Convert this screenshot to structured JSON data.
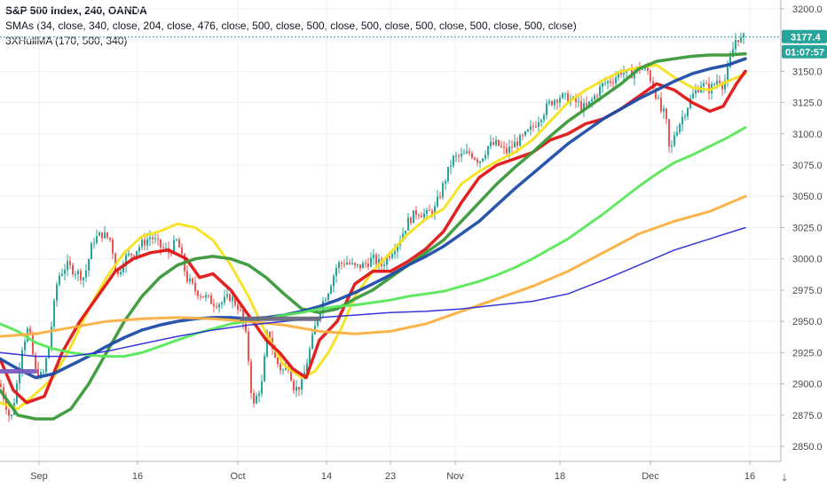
{
  "legend": {
    "title": "S&P 500 Index, 240, OANDA",
    "sma": "SMAs (34, close, 340, close, 204, close, 476, close, 500, close, 500, close, 500, close, 500, close, 500, close, 500, close)",
    "hull": "3XHullMA (170, 500, 340)"
  },
  "badges": {
    "price": "3177.4",
    "timer": "01:07:57"
  },
  "colors": {
    "price_badge": "#26a69a",
    "timer_badge": "#26a69a",
    "up_candle": "#26a69a",
    "down_candle": "#ef5350",
    "gridline": "#eef0f3"
  },
  "chart_data": {
    "type": "line",
    "title": "S&P 500 Index, 240, OANDA",
    "x_tick_labels": [
      "Sep",
      "16",
      "Oct",
      "14",
      "23",
      "Nov",
      "18",
      "Dec",
      "16"
    ],
    "y_tick_labels": [
      2850,
      2875,
      2900,
      2925,
      2950,
      2975,
      3000,
      3025,
      3050,
      3075,
      3100,
      3125,
      3150,
      3175,
      3200
    ],
    "ylim": [
      2838,
      3207
    ],
    "grid": true,
    "last_price": 3177.4,
    "price_series": {
      "name": "S&P 500 Index",
      "x": [
        0,
        8,
        12,
        18,
        25,
        32,
        40,
        48,
        55,
        65,
        75,
        85,
        95,
        105,
        115,
        125,
        132,
        140,
        150,
        160,
        170,
        180,
        190,
        200,
        210,
        220,
        230,
        240,
        250,
        260,
        270,
        278,
        285,
        290,
        295,
        302,
        310,
        318,
        325,
        332,
        340,
        350,
        360,
        370,
        380,
        390,
        400,
        410,
        420,
        430,
        440,
        450,
        460,
        470,
        480,
        490,
        500,
        510,
        520,
        530,
        540,
        550,
        560,
        570,
        580,
        590,
        600,
        610,
        620,
        630,
        640,
        650,
        660,
        670,
        680,
        690,
        700,
        710,
        720,
        730,
        740,
        745,
        750,
        755,
        760,
        770,
        780,
        790,
        800,
        810,
        815,
        820,
        825,
        830,
        835,
        840
      ],
      "y": [
        2900,
        2880,
        2870,
        2895,
        2930,
        2945,
        2910,
        2905,
        2930,
        2985,
        2995,
        2990,
        2985,
        3015,
        3020,
        3015,
        2985,
        3000,
        3005,
        3012,
        3018,
        3010,
        3005,
        3015,
        2985,
        2975,
        2970,
        2965,
        2965,
        2970,
        2960,
        2935,
        2880,
        2892,
        2900,
        2945,
        2920,
        2910,
        2915,
        2895,
        2900,
        2930,
        2960,
        2975,
        2995,
        2998,
        2993,
        2995,
        3000,
        2995,
        3005,
        3015,
        3030,
        3038,
        3035,
        3040,
        3060,
        3080,
        3082,
        3085,
        3078,
        3090,
        3092,
        3085,
        3092,
        3097,
        3105,
        3115,
        3125,
        3130,
        3128,
        3125,
        3120,
        3130,
        3140,
        3143,
        3150,
        3147,
        3153,
        3150,
        3130,
        3118,
        3115,
        3082,
        3100,
        3115,
        3130,
        3140,
        3135,
        3145,
        3138,
        3150,
        3165,
        3178,
        3175,
        3177
      ]
    },
    "series": [
      {
        "color": "#f5e11f",
        "x": [
          0,
          20,
          40,
          60,
          80,
          100,
          120,
          140,
          160,
          180,
          200,
          220,
          240,
          260,
          280,
          300,
          320,
          340,
          355,
          370,
          385,
          400,
          420,
          440,
          460,
          480,
          500,
          520,
          540,
          560,
          580,
          600,
          620,
          640,
          660,
          680,
          700,
          720,
          740,
          760,
          780,
          800,
          820,
          840
        ],
        "y": [
          2885,
          2880,
          2892,
          2905,
          2930,
          2960,
          2985,
          3005,
          3018,
          3022,
          3028,
          3025,
          3015,
          2995,
          2970,
          2940,
          2915,
          2905,
          2910,
          2925,
          2945,
          2970,
          2990,
          3005,
          3020,
          3032,
          3040,
          3060,
          3070,
          3078,
          3085,
          3095,
          3110,
          3125,
          3135,
          3143,
          3150,
          3153,
          3155,
          3145,
          3137,
          3135,
          3142,
          3148
        ]
      },
      {
        "color": "#e01515",
        "x": [
          0,
          15,
          30,
          50,
          70,
          90,
          110,
          130,
          150,
          170,
          190,
          210,
          225,
          240,
          260,
          280,
          300,
          315,
          330,
          345,
          360,
          380,
          400,
          420,
          440,
          460,
          480,
          500,
          520,
          540,
          560,
          580,
          600,
          620,
          640,
          660,
          680,
          700,
          720,
          740,
          760,
          780,
          800,
          815,
          830,
          840
        ],
        "y": [
          2920,
          2895,
          2885,
          2890,
          2925,
          2950,
          2970,
          2990,
          3000,
          3005,
          3007,
          3000,
          2985,
          2988,
          2975,
          2955,
          2935,
          2925,
          2912,
          2905,
          2935,
          2950,
          2980,
          2990,
          2990,
          2998,
          3008,
          3022,
          3045,
          3065,
          3075,
          3080,
          3085,
          3095,
          3100,
          3108,
          3112,
          3120,
          3130,
          3140,
          3135,
          3125,
          3118,
          3122,
          3140,
          3150
        ]
      },
      {
        "color": "#3a9a3a",
        "x": [
          0,
          20,
          40,
          60,
          80,
          100,
          120,
          140,
          160,
          180,
          200,
          220,
          240,
          260,
          280,
          300,
          320,
          340,
          360,
          380,
          400,
          420,
          440,
          460,
          480,
          500,
          520,
          540,
          560,
          580,
          600,
          620,
          640,
          660,
          680,
          700,
          720,
          740,
          760,
          780,
          800,
          820,
          840
        ],
        "y": [
          2895,
          2875,
          2872,
          2872,
          2880,
          2900,
          2925,
          2950,
          2970,
          2985,
          2995,
          3000,
          3002,
          3000,
          2995,
          2985,
          2972,
          2960,
          2957,
          2960,
          2968,
          2975,
          2985,
          2995,
          3005,
          3015,
          3030,
          3045,
          3060,
          3073,
          3085,
          3098,
          3110,
          3120,
          3130,
          3140,
          3152,
          3158,
          3160,
          3162,
          3163,
          3163,
          3164
        ]
      },
      {
        "color": "#1f4ca8",
        "x": [
          0,
          20,
          40,
          60,
          80,
          100,
          120,
          140,
          160,
          180,
          200,
          220,
          240,
          260,
          280,
          300,
          320,
          340,
          360,
          380,
          400,
          420,
          440,
          460,
          480,
          500,
          520,
          540,
          560,
          580,
          600,
          620,
          640,
          660,
          680,
          700,
          720,
          740,
          760,
          780,
          800,
          820,
          840
        ],
        "y": [
          2920,
          2912,
          2905,
          2908,
          2915,
          2922,
          2930,
          2937,
          2943,
          2947,
          2950,
          2952,
          2953,
          2953,
          2952,
          2953,
          2955,
          2958,
          2962,
          2967,
          2973,
          2980,
          2987,
          2995,
          3002,
          3010,
          3020,
          3030,
          3043,
          3056,
          3068,
          3080,
          3092,
          3102,
          3112,
          3120,
          3128,
          3135,
          3142,
          3148,
          3152,
          3155,
          3160
        ]
      },
      {
        "color": "#5ae85a",
        "x": [
          0,
          20,
          40,
          60,
          80,
          100,
          120,
          140,
          160,
          180,
          200,
          220,
          240,
          260,
          280,
          300,
          320,
          340,
          360,
          380,
          400,
          420,
          440,
          460,
          480,
          500,
          520,
          540,
          560,
          580,
          600,
          620,
          640,
          660,
          680,
          700,
          720,
          740,
          760,
          780,
          800,
          820,
          840
        ],
        "y": [
          2948,
          2942,
          2933,
          2928,
          2925,
          2923,
          2922,
          2922,
          2925,
          2930,
          2935,
          2940,
          2944,
          2948,
          2950,
          2952,
          2955,
          2957,
          2960,
          2962,
          2963,
          2965,
          2967,
          2970,
          2972,
          2974,
          2978,
          2982,
          2987,
          2993,
          3000,
          3008,
          3016,
          3026,
          3036,
          3047,
          3058,
          3068,
          3077,
          3083,
          3090,
          3097,
          3105
        ]
      },
      {
        "color": "#fbb040",
        "x": [
          0,
          40,
          80,
          120,
          160,
          200,
          240,
          280,
          320,
          360,
          400,
          440,
          480,
          520,
          560,
          600,
          640,
          680,
          720,
          760,
          800,
          840
        ],
        "y": [
          2938,
          2940,
          2945,
          2950,
          2952,
          2953,
          2952,
          2950,
          2947,
          2942,
          2940,
          2942,
          2948,
          2958,
          2968,
          2978,
          2990,
          3005,
          3020,
          3030,
          3038,
          3050
        ]
      },
      {
        "color": "#2b2bd8",
        "x": [
          0,
          40,
          80,
          120,
          160,
          200,
          240,
          280,
          320,
          360,
          400,
          440,
          480,
          520,
          560,
          600,
          640,
          680,
          720,
          760,
          800,
          840
        ],
        "y": [
          2925,
          2922,
          2922,
          2926,
          2932,
          2938,
          2943,
          2947,
          2950,
          2953,
          2955,
          2957,
          2958,
          2960,
          2963,
          2966,
          2972,
          2983,
          2995,
          3007,
          3016,
          3025
        ]
      },
      {
        "color": "#7a5fc0",
        "x": [
          0,
          40
        ],
        "y": [
          2910,
          2910
        ]
      },
      {
        "color": "#6a6a80",
        "x": [
          272,
          360
        ],
        "y": [
          2952,
          2952
        ]
      }
    ]
  }
}
